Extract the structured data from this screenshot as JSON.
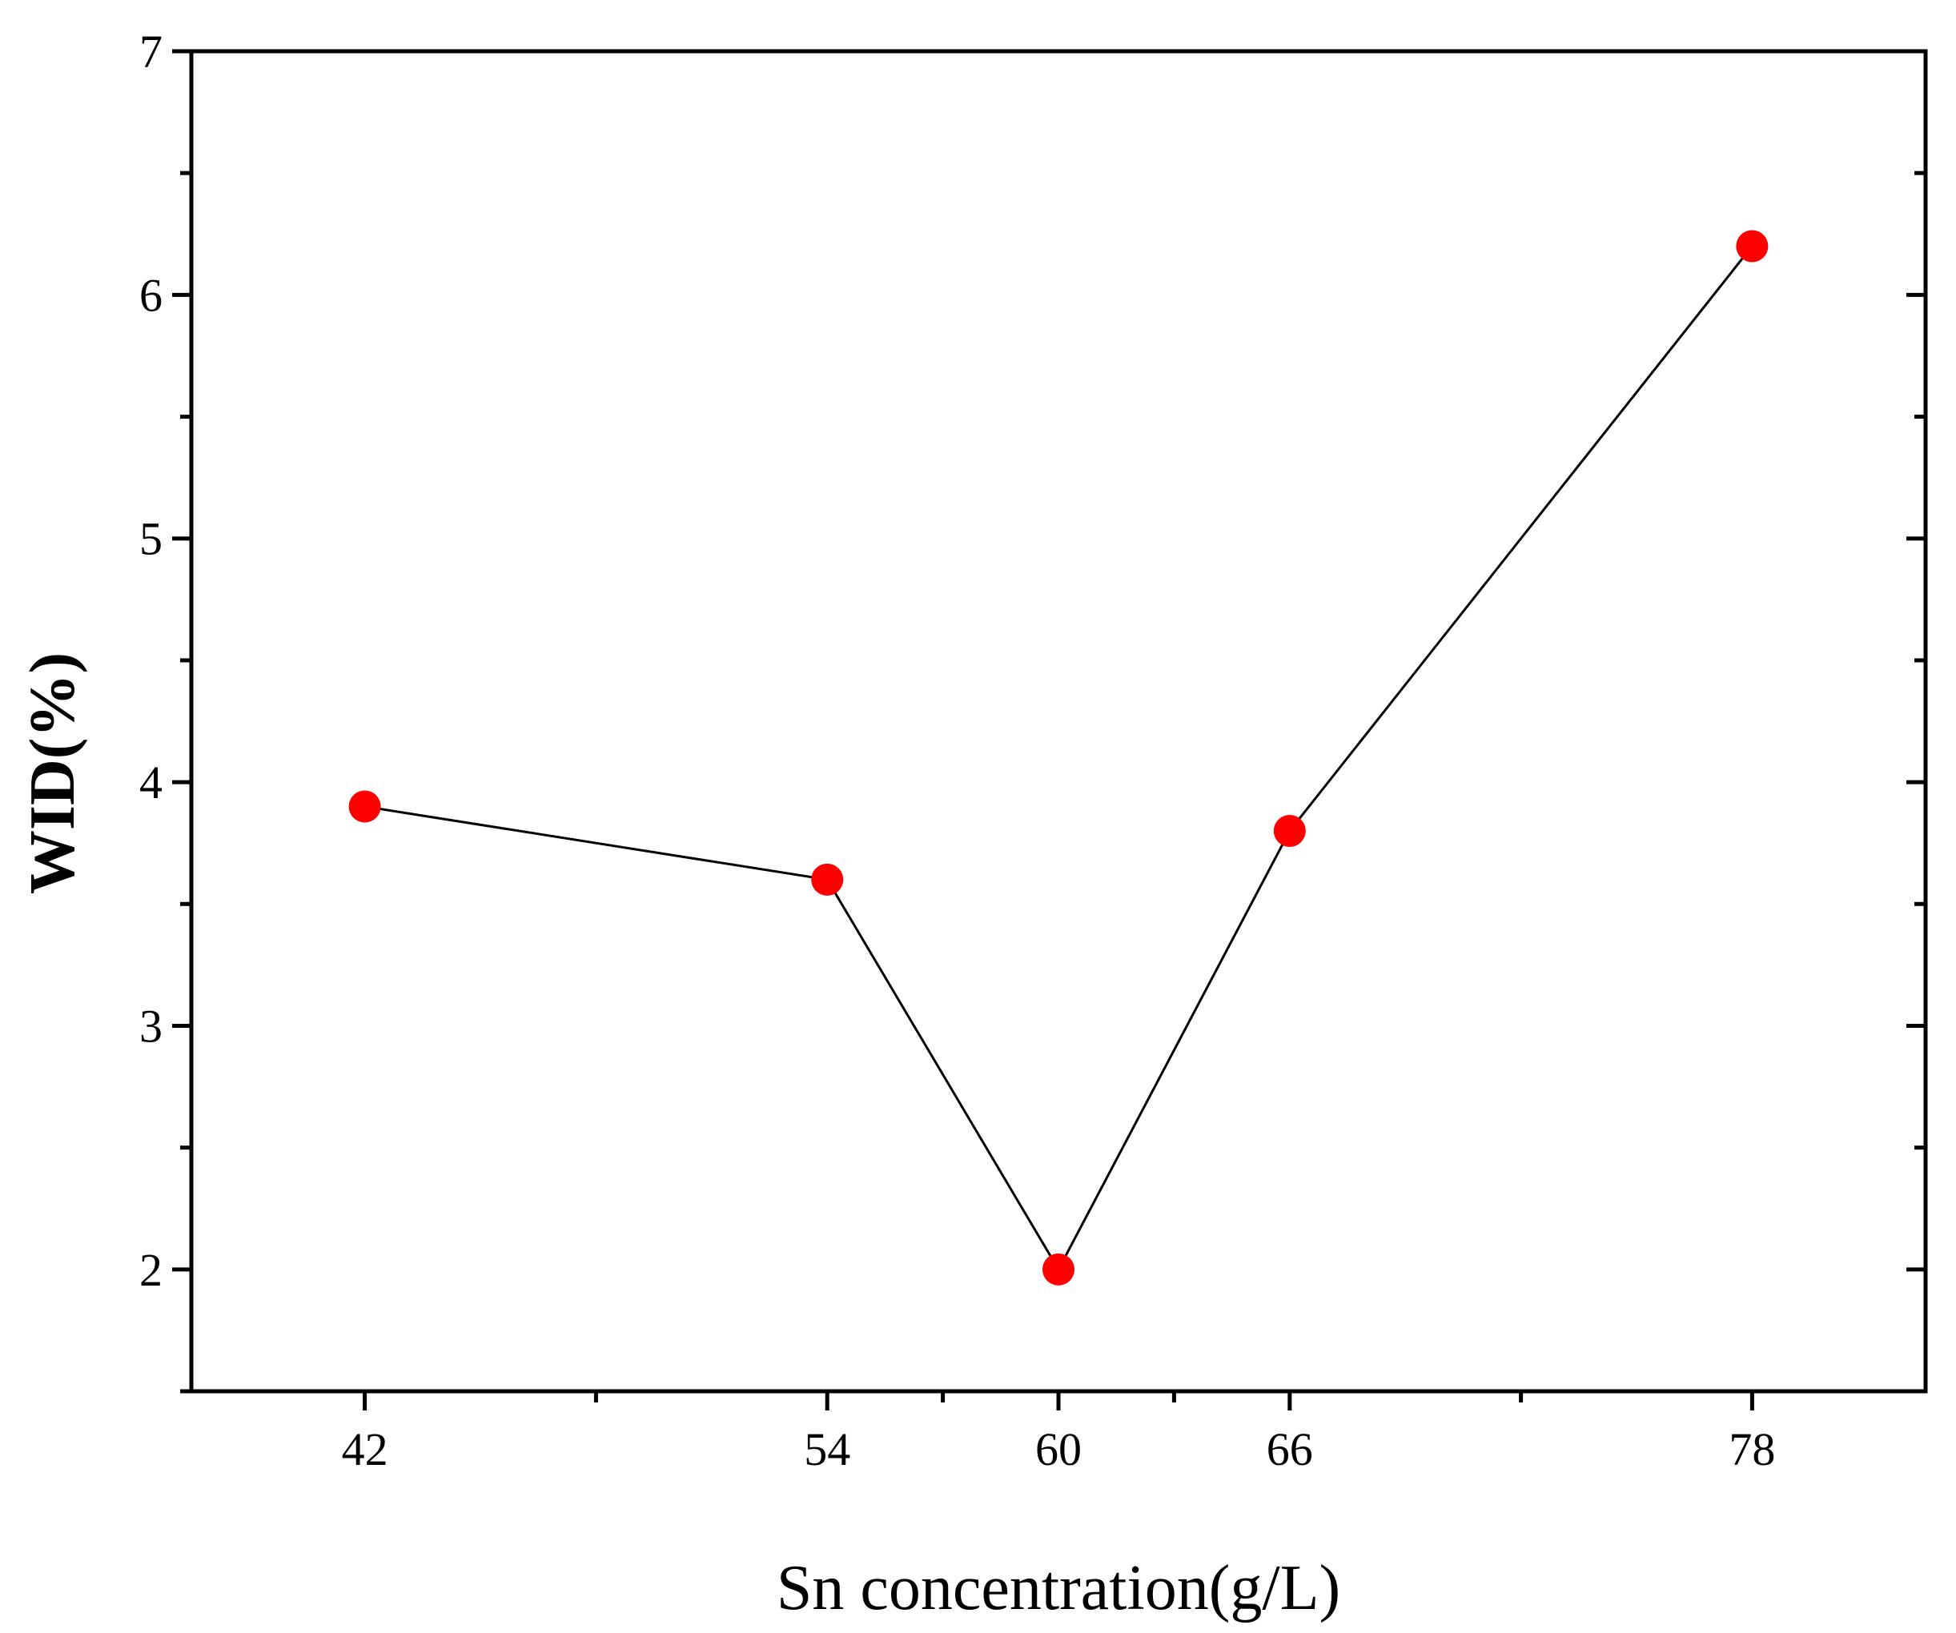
{
  "chart_data": {
    "type": "line",
    "title": "",
    "xlabel": "Sn concentration(g/L)",
    "ylabel": "WID(%)",
    "x": [
      42,
      54,
      60,
      66,
      78
    ],
    "y": [
      3.9,
      3.6,
      2.0,
      3.8,
      6.2
    ],
    "xlim": [
      37.5,
      82.5
    ],
    "ylim": [
      1.5,
      7
    ],
    "x_ticks": [
      42,
      54,
      60,
      66,
      78
    ],
    "x_tick_labels": [
      "42",
      "54",
      "60",
      "66",
      "78"
    ],
    "x_minor_ticks": [
      48,
      57,
      63,
      72
    ],
    "y_ticks": [
      2,
      3,
      4,
      5,
      6,
      7
    ],
    "y_tick_labels": [
      "2",
      "3",
      "4",
      "5",
      "6",
      "7"
    ],
    "y_minor_ticks": [
      1.5,
      2.5,
      3.5,
      4.5,
      5.5,
      6.5
    ],
    "grid": false,
    "legend": "none",
    "colors": {
      "marker": "#ff0000",
      "line": "#000000",
      "axes": "#000000"
    }
  }
}
